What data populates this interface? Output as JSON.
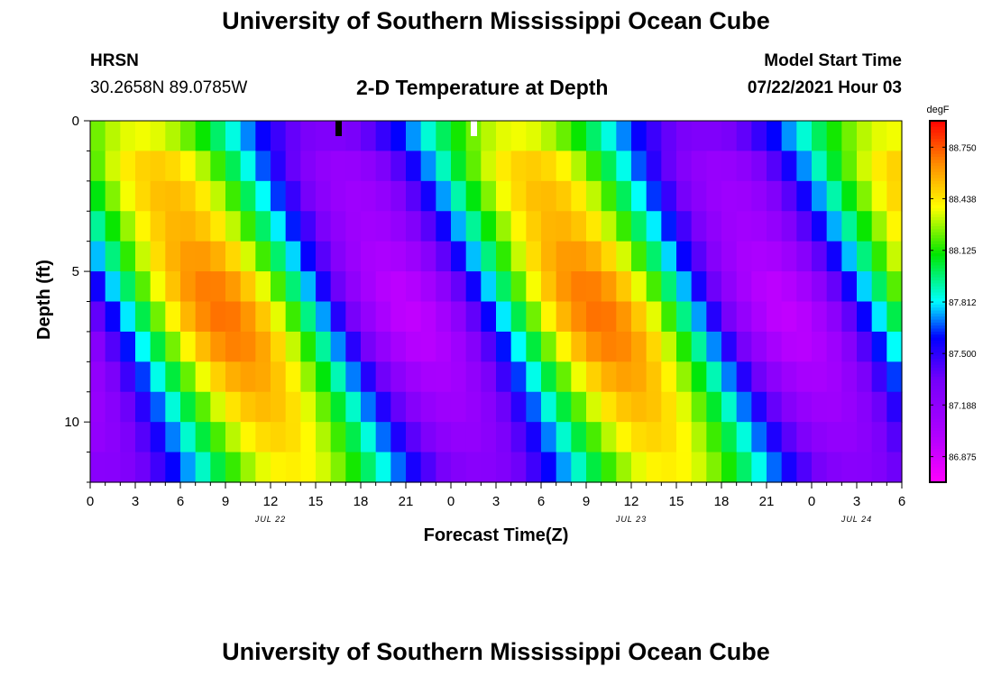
{
  "header": {
    "title": "University of Southern Mississippi Ocean Cube",
    "station": "HRSN",
    "coords": "30.2658N  89.0785W",
    "plot_title": "2-D Temperature at Depth",
    "model_label": "Model Start Time",
    "model_time": "07/22/2021 Hour 03"
  },
  "footer": {
    "title": "University of Southern Mississippi Ocean Cube"
  },
  "chart_data": {
    "type": "heatmap",
    "title": "2-D Temperature at Depth",
    "xlabel": "Forecast Time(Z)",
    "ylabel": "Depth (ft)",
    "x_ticks": [
      "0",
      "3",
      "6",
      "9",
      "12",
      "15",
      "18",
      "21",
      "0",
      "3",
      "6",
      "9",
      "12",
      "15",
      "18",
      "21",
      "0",
      "3",
      "6"
    ],
    "x_tick_hours": [
      0,
      3,
      6,
      9,
      12,
      15,
      18,
      21,
      24,
      27,
      30,
      33,
      36,
      39,
      42,
      45,
      48,
      51,
      54
    ],
    "xlim_hours": [
      0,
      54
    ],
    "date_labels": [
      {
        "text": "JUL 22",
        "hour": 12
      },
      {
        "text": "JUL 23",
        "hour": 36
      },
      {
        "text": "JUL 24",
        "hour": 51
      }
    ],
    "y_ticks": [
      "0",
      "5",
      "10"
    ],
    "y_tick_values": [
      0,
      5,
      10
    ],
    "ylim": [
      0,
      12
    ],
    "markers": [
      {
        "hour": 16.5,
        "color": "#000000"
      },
      {
        "hour": 25.5,
        "color": "#ffffff"
      }
    ],
    "colorbar": {
      "unit": "degF",
      "ticks": [
        "88.750",
        "88.438",
        "88.125",
        "87.812",
        "87.500",
        "87.188",
        "86.875"
      ],
      "range": [
        86.72,
        88.91
      ]
    },
    "grid_hours_step": 1,
    "depth_rows": [
      0.5,
      1.5,
      2.5,
      3.5,
      4.5,
      5.5,
      6.5,
      7.5,
      8.5,
      9.5,
      10.5,
      11.5
    ],
    "warm_phase_top_hours": [
      3.0,
      26.0,
      50.5
    ],
    "cool_phase_top_hours": [
      16.0,
      41.0
    ],
    "phase_shift_ft_per_hr": 0.9,
    "amplitude_by_depth_degF": [
      0.55,
      0.68,
      0.72,
      0.74,
      0.8,
      0.86,
      0.88,
      0.85,
      0.78,
      0.72,
      0.66,
      0.6
    ],
    "mean_temp_degF": 87.82
  }
}
